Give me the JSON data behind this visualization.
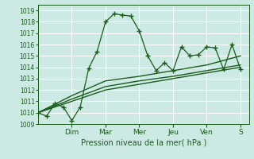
{
  "background_color": "#cce9e4",
  "grid_color": "#ffffff",
  "line_color": "#1a5c1a",
  "xlabel_text": "Pression niveau de la mer( hPa )",
  "ylim": [
    1009,
    1019.5
  ],
  "yticks": [
    1009,
    1010,
    1011,
    1012,
    1013,
    1014,
    1015,
    1016,
    1017,
    1018,
    1019
  ],
  "day_labels": [
    "Dim",
    "Mar",
    "Mer",
    "Jeu",
    "Ven",
    "S"
  ],
  "day_positions": [
    2,
    4,
    6,
    8,
    10,
    12
  ],
  "xlim": [
    0,
    12.5
  ],
  "series1_x": [
    0,
    0.5,
    1.0,
    1.5,
    2.0,
    2.5,
    3.0,
    3.5,
    4.0,
    4.5,
    5.0,
    5.5,
    6.0,
    6.5,
    7.0,
    7.5,
    8.0,
    8.5,
    9.0,
    9.5,
    10.0,
    10.5,
    11.0,
    11.5,
    12.0
  ],
  "series1_y": [
    1010.0,
    1009.7,
    1010.8,
    1010.5,
    1009.3,
    1010.5,
    1013.9,
    1015.4,
    1018.0,
    1018.7,
    1018.6,
    1018.5,
    1017.2,
    1015.0,
    1013.7,
    1014.4,
    1013.7,
    1015.8,
    1015.0,
    1015.1,
    1015.8,
    1015.7,
    1013.8,
    1016.0,
    1013.8
  ],
  "series2_x": [
    0,
    2,
    4,
    6,
    8,
    10,
    12
  ],
  "series2_y": [
    1010.0,
    1011.0,
    1012.0,
    1012.5,
    1013.0,
    1013.5,
    1014.0
  ],
  "series3_x": [
    0,
    2,
    4,
    6,
    8,
    10,
    12
  ],
  "series3_y": [
    1010.0,
    1011.2,
    1012.3,
    1012.8,
    1013.2,
    1013.7,
    1014.2
  ],
  "series4_x": [
    0,
    2,
    4,
    6,
    8,
    10,
    12
  ],
  "series4_y": [
    1010.0,
    1011.5,
    1012.8,
    1013.2,
    1013.7,
    1014.2,
    1015.0
  ]
}
